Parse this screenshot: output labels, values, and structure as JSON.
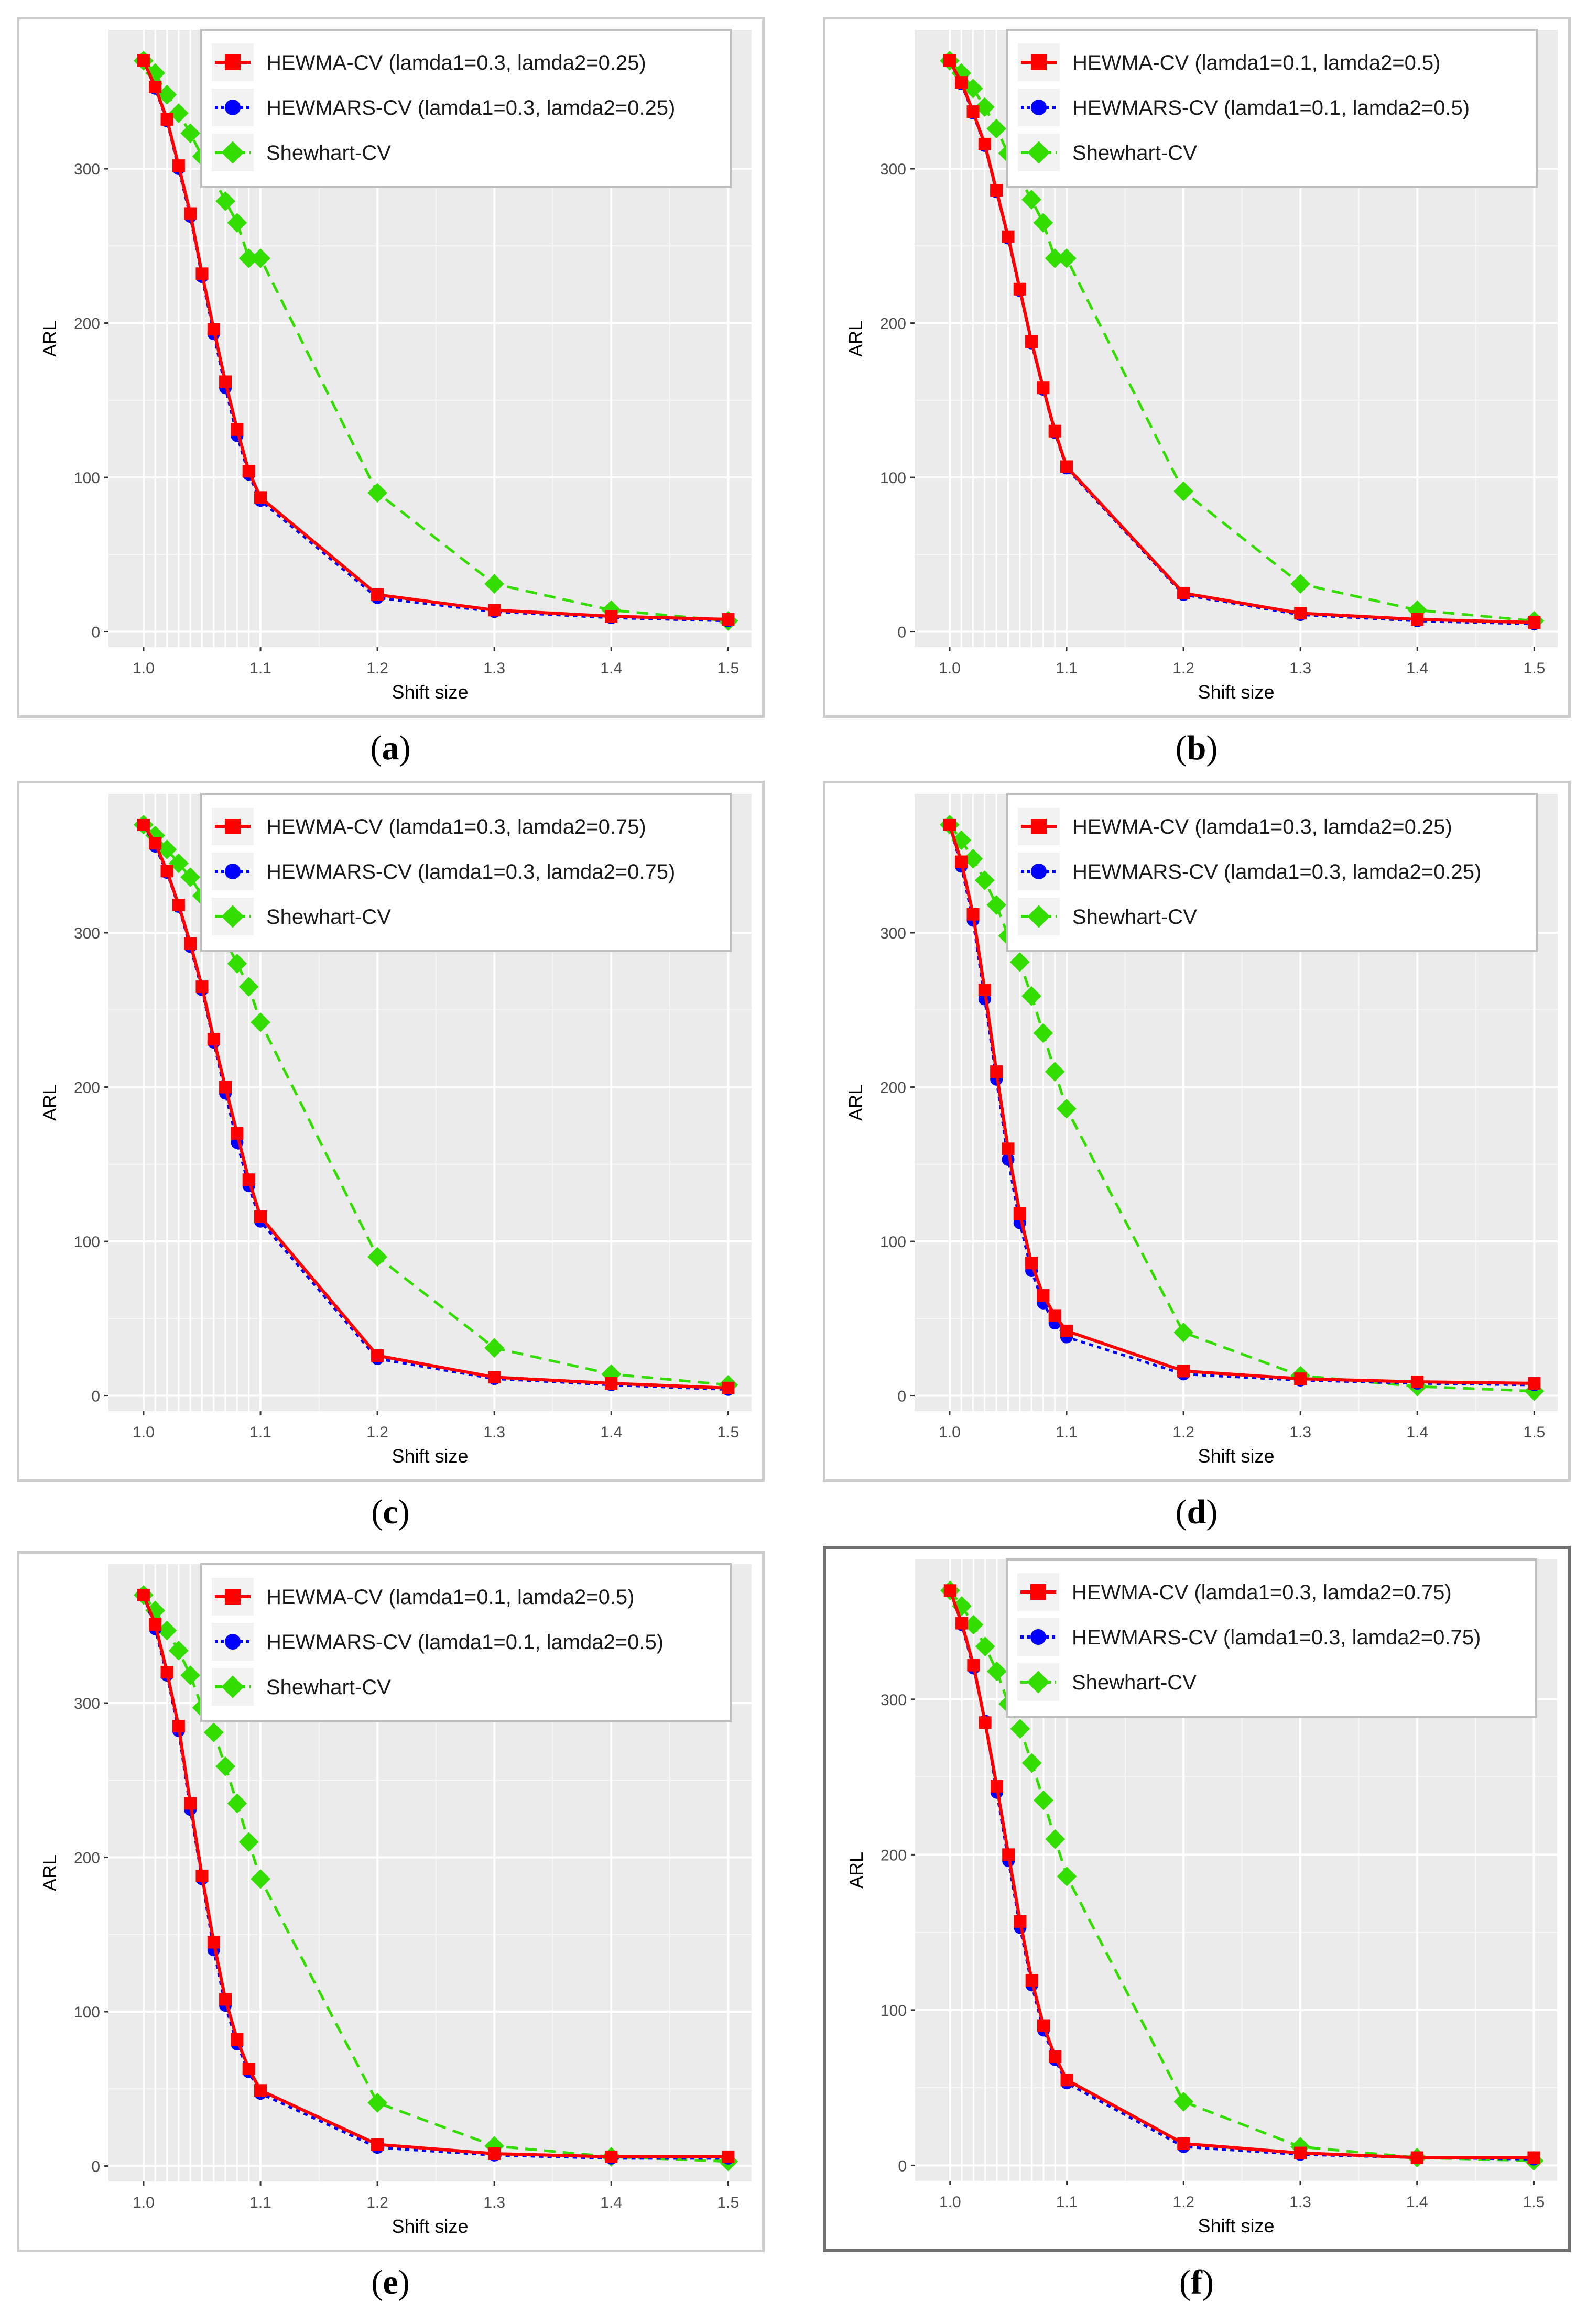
{
  "chart_data": [
    {
      "type": "line",
      "panel_label": "a",
      "xlabel": "Shift size",
      "ylabel": "ARL",
      "x": [
        1.0,
        1.01,
        1.02,
        1.03,
        1.04,
        1.05,
        1.06,
        1.07,
        1.08,
        1.09,
        1.1,
        1.2,
        1.3,
        1.4,
        1.5
      ],
      "xticks": [
        "1.0",
        "1.1",
        "1.2",
        "1.3",
        "1.4",
        "1.5"
      ],
      "yticks": [
        "0",
        "100",
        "200",
        "300"
      ],
      "xlim": [
        0.97,
        1.52
      ],
      "ylim": [
        -10,
        390
      ],
      "legend_position": "top-right",
      "series": [
        {
          "name": "HEWMA-CV (lamda1=0.3, lamda2=0.25)",
          "color": "#ff0000",
          "marker": "square",
          "line": "solid",
          "values": [
            370,
            353,
            332,
            302,
            271,
            232,
            196,
            162,
            131,
            104,
            87,
            24,
            14,
            10,
            8
          ]
        },
        {
          "name": "HEWMARS-CV (lamda1=0.3, lamda2=0.25)",
          "color": "#0000ff",
          "marker": "circle",
          "line": "dotted",
          "values": [
            370,
            352,
            331,
            300,
            269,
            230,
            193,
            158,
            127,
            102,
            85,
            22,
            13,
            9,
            7
          ]
        },
        {
          "name": "Shewhart-CV",
          "color": "#33dd00",
          "marker": "diamond",
          "line": "dashed",
          "values": [
            370,
            362,
            348,
            336,
            323,
            308,
            294,
            279,
            265,
            242,
            242,
            90,
            31,
            14,
            7
          ]
        }
      ]
    },
    {
      "type": "line",
      "panel_label": "b",
      "xlabel": "Shift size",
      "ylabel": "ARL",
      "x": [
        1.0,
        1.01,
        1.02,
        1.03,
        1.04,
        1.05,
        1.06,
        1.07,
        1.08,
        1.09,
        1.1,
        1.2,
        1.3,
        1.4,
        1.5
      ],
      "xticks": [
        "1.0",
        "1.1",
        "1.2",
        "1.3",
        "1.4",
        "1.5"
      ],
      "yticks": [
        "0",
        "100",
        "200",
        "300"
      ],
      "xlim": [
        0.97,
        1.52
      ],
      "ylim": [
        -10,
        390
      ],
      "legend_position": "top-right",
      "series": [
        {
          "name": "HEWMA-CV (lamda1=0.1, lamda2=0.5)",
          "color": "#ff0000",
          "marker": "square",
          "line": "solid",
          "values": [
            370,
            356,
            337,
            316,
            286,
            256,
            222,
            188,
            158,
            130,
            107,
            25,
            12,
            8,
            6
          ]
        },
        {
          "name": "HEWMARS-CV (lamda1=0.1, lamda2=0.5)",
          "color": "#0000ff",
          "marker": "circle",
          "line": "dotted",
          "values": [
            370,
            355,
            336,
            315,
            285,
            255,
            221,
            187,
            157,
            129,
            106,
            24,
            11,
            7,
            5
          ]
        },
        {
          "name": "Shewhart-CV",
          "color": "#33dd00",
          "marker": "diamond",
          "line": "dashed",
          "values": [
            370,
            362,
            352,
            340,
            326,
            310,
            294,
            280,
            265,
            242,
            242,
            91,
            31,
            14,
            7
          ]
        }
      ]
    },
    {
      "type": "line",
      "panel_label": "c",
      "xlabel": "Shift size",
      "ylabel": "ARL",
      "x": [
        1.0,
        1.01,
        1.02,
        1.03,
        1.04,
        1.05,
        1.06,
        1.07,
        1.08,
        1.09,
        1.1,
        1.2,
        1.3,
        1.4,
        1.5
      ],
      "xticks": [
        "1.0",
        "1.1",
        "1.2",
        "1.3",
        "1.4",
        "1.5"
      ],
      "yticks": [
        "0",
        "100",
        "200",
        "300"
      ],
      "xlim": [
        0.97,
        1.52
      ],
      "ylim": [
        -10,
        390
      ],
      "legend_position": "top-right",
      "series": [
        {
          "name": "HEWMA-CV (lamda1=0.3, lamda2=0.75)",
          "color": "#ff0000",
          "marker": "square",
          "line": "solid",
          "values": [
            370,
            358,
            340,
            318,
            293,
            265,
            231,
            200,
            170,
            140,
            116,
            26,
            12,
            8,
            5
          ]
        },
        {
          "name": "HEWMARS-CV (lamda1=0.3, lamda2=0.75)",
          "color": "#0000ff",
          "marker": "circle",
          "line": "dotted",
          "values": [
            370,
            356,
            339,
            317,
            291,
            263,
            229,
            196,
            164,
            136,
            113,
            24,
            11,
            7,
            4
          ]
        },
        {
          "name": "Shewhart-CV",
          "color": "#33dd00",
          "marker": "diamond",
          "line": "dashed",
          "values": [
            370,
            363,
            354,
            345,
            336,
            324,
            309,
            295,
            280,
            265,
            242,
            90,
            31,
            14,
            7
          ]
        }
      ]
    },
    {
      "type": "line",
      "panel_label": "d",
      "xlabel": "Shift size",
      "ylabel": "ARL",
      "x": [
        1.0,
        1.01,
        1.02,
        1.03,
        1.04,
        1.05,
        1.06,
        1.07,
        1.08,
        1.09,
        1.1,
        1.2,
        1.3,
        1.4,
        1.5
      ],
      "xticks": [
        "1.0",
        "1.1",
        "1.2",
        "1.3",
        "1.4",
        "1.5"
      ],
      "yticks": [
        "0",
        "100",
        "200",
        "300"
      ],
      "xlim": [
        0.97,
        1.52
      ],
      "ylim": [
        -10,
        390
      ],
      "legend_position": "top-right",
      "series": [
        {
          "name": "HEWMA-CV (lamda1=0.3, lamda2=0.25)",
          "color": "#ff0000",
          "marker": "square",
          "line": "solid",
          "values": [
            370,
            346,
            312,
            263,
            210,
            160,
            118,
            86,
            65,
            52,
            42,
            16,
            11,
            9,
            8
          ]
        },
        {
          "name": "HEWMARS-CV (lamda1=0.3, lamda2=0.25)",
          "color": "#0000ff",
          "marker": "circle",
          "line": "dotted",
          "values": [
            370,
            343,
            308,
            257,
            205,
            153,
            112,
            81,
            60,
            47,
            38,
            14,
            10,
            8,
            7
          ]
        },
        {
          "name": "Shewhart-CV",
          "color": "#33dd00",
          "marker": "diamond",
          "line": "dashed",
          "values": [
            370,
            360,
            348,
            334,
            318,
            298,
            281,
            259,
            235,
            210,
            186,
            41,
            13,
            6,
            3
          ]
        }
      ]
    },
    {
      "type": "line",
      "panel_label": "e",
      "xlabel": "Shift size",
      "ylabel": "ARL",
      "x": [
        1.0,
        1.01,
        1.02,
        1.03,
        1.04,
        1.05,
        1.06,
        1.07,
        1.08,
        1.09,
        1.1,
        1.2,
        1.3,
        1.4,
        1.5
      ],
      "xticks": [
        "1.0",
        "1.1",
        "1.2",
        "1.3",
        "1.4",
        "1.5"
      ],
      "yticks": [
        "0",
        "100",
        "200",
        "300"
      ],
      "xlim": [
        0.97,
        1.52
      ],
      "ylim": [
        -10,
        390
      ],
      "legend_position": "top-right",
      "series": [
        {
          "name": "HEWMA-CV (lamda1=0.1, lamda2=0.5)",
          "color": "#ff0000",
          "marker": "square",
          "line": "solid",
          "values": [
            370,
            351,
            320,
            285,
            235,
            188,
            145,
            108,
            82,
            63,
            49,
            14,
            8,
            6,
            6
          ]
        },
        {
          "name": "HEWMARS-CV (lamda1=0.1, lamda2=0.5)",
          "color": "#0000ff",
          "marker": "circle",
          "line": "dotted",
          "values": [
            370,
            348,
            318,
            282,
            231,
            186,
            140,
            104,
            79,
            61,
            47,
            12,
            7,
            5,
            5
          ]
        },
        {
          "name": "Shewhart-CV",
          "color": "#33dd00",
          "marker": "diamond",
          "line": "dashed",
          "values": [
            370,
            360,
            347,
            334,
            318,
            297,
            281,
            259,
            235,
            210,
            186,
            41,
            13,
            6,
            3
          ]
        }
      ]
    },
    {
      "type": "line",
      "panel_label": "f",
      "xlabel": "Shift size",
      "ylabel": "ARL",
      "x": [
        1.0,
        1.01,
        1.02,
        1.03,
        1.04,
        1.05,
        1.06,
        1.07,
        1.08,
        1.09,
        1.1,
        1.2,
        1.3,
        1.4,
        1.5
      ],
      "xticks": [
        "1.0",
        "1.1",
        "1.2",
        "1.3",
        "1.4",
        "1.5"
      ],
      "yticks": [
        "0",
        "100",
        "200",
        "300"
      ],
      "xlim": [
        0.97,
        1.52
      ],
      "ylim": [
        -10,
        390
      ],
      "legend_position": "top-right",
      "series": [
        {
          "name": "HEWMA-CV (lamda1=0.3, lamda2=0.75)",
          "color": "#ff0000",
          "marker": "square",
          "line": "solid",
          "values": [
            370,
            349,
            322,
            285,
            244,
            200,
            157,
            119,
            90,
            70,
            55,
            14,
            8,
            5,
            5
          ]
        },
        {
          "name": "HEWMARS-CV (lamda1=0.3, lamda2=0.75)",
          "color": "#0000ff",
          "marker": "circle",
          "line": "dotted",
          "values": [
            370,
            348,
            320,
            286,
            240,
            196,
            153,
            116,
            87,
            68,
            53,
            12,
            7,
            5,
            4
          ]
        },
        {
          "name": "Shewhart-CV",
          "color": "#33dd00",
          "marker": "diamond",
          "line": "dashed",
          "values": [
            370,
            360,
            348,
            334,
            318,
            297,
            281,
            259,
            235,
            210,
            186,
            41,
            12,
            5,
            3
          ]
        }
      ]
    }
  ],
  "captions": {
    "a": "a",
    "b": "b",
    "c": "c",
    "d": "d",
    "e": "e",
    "f": "f"
  }
}
